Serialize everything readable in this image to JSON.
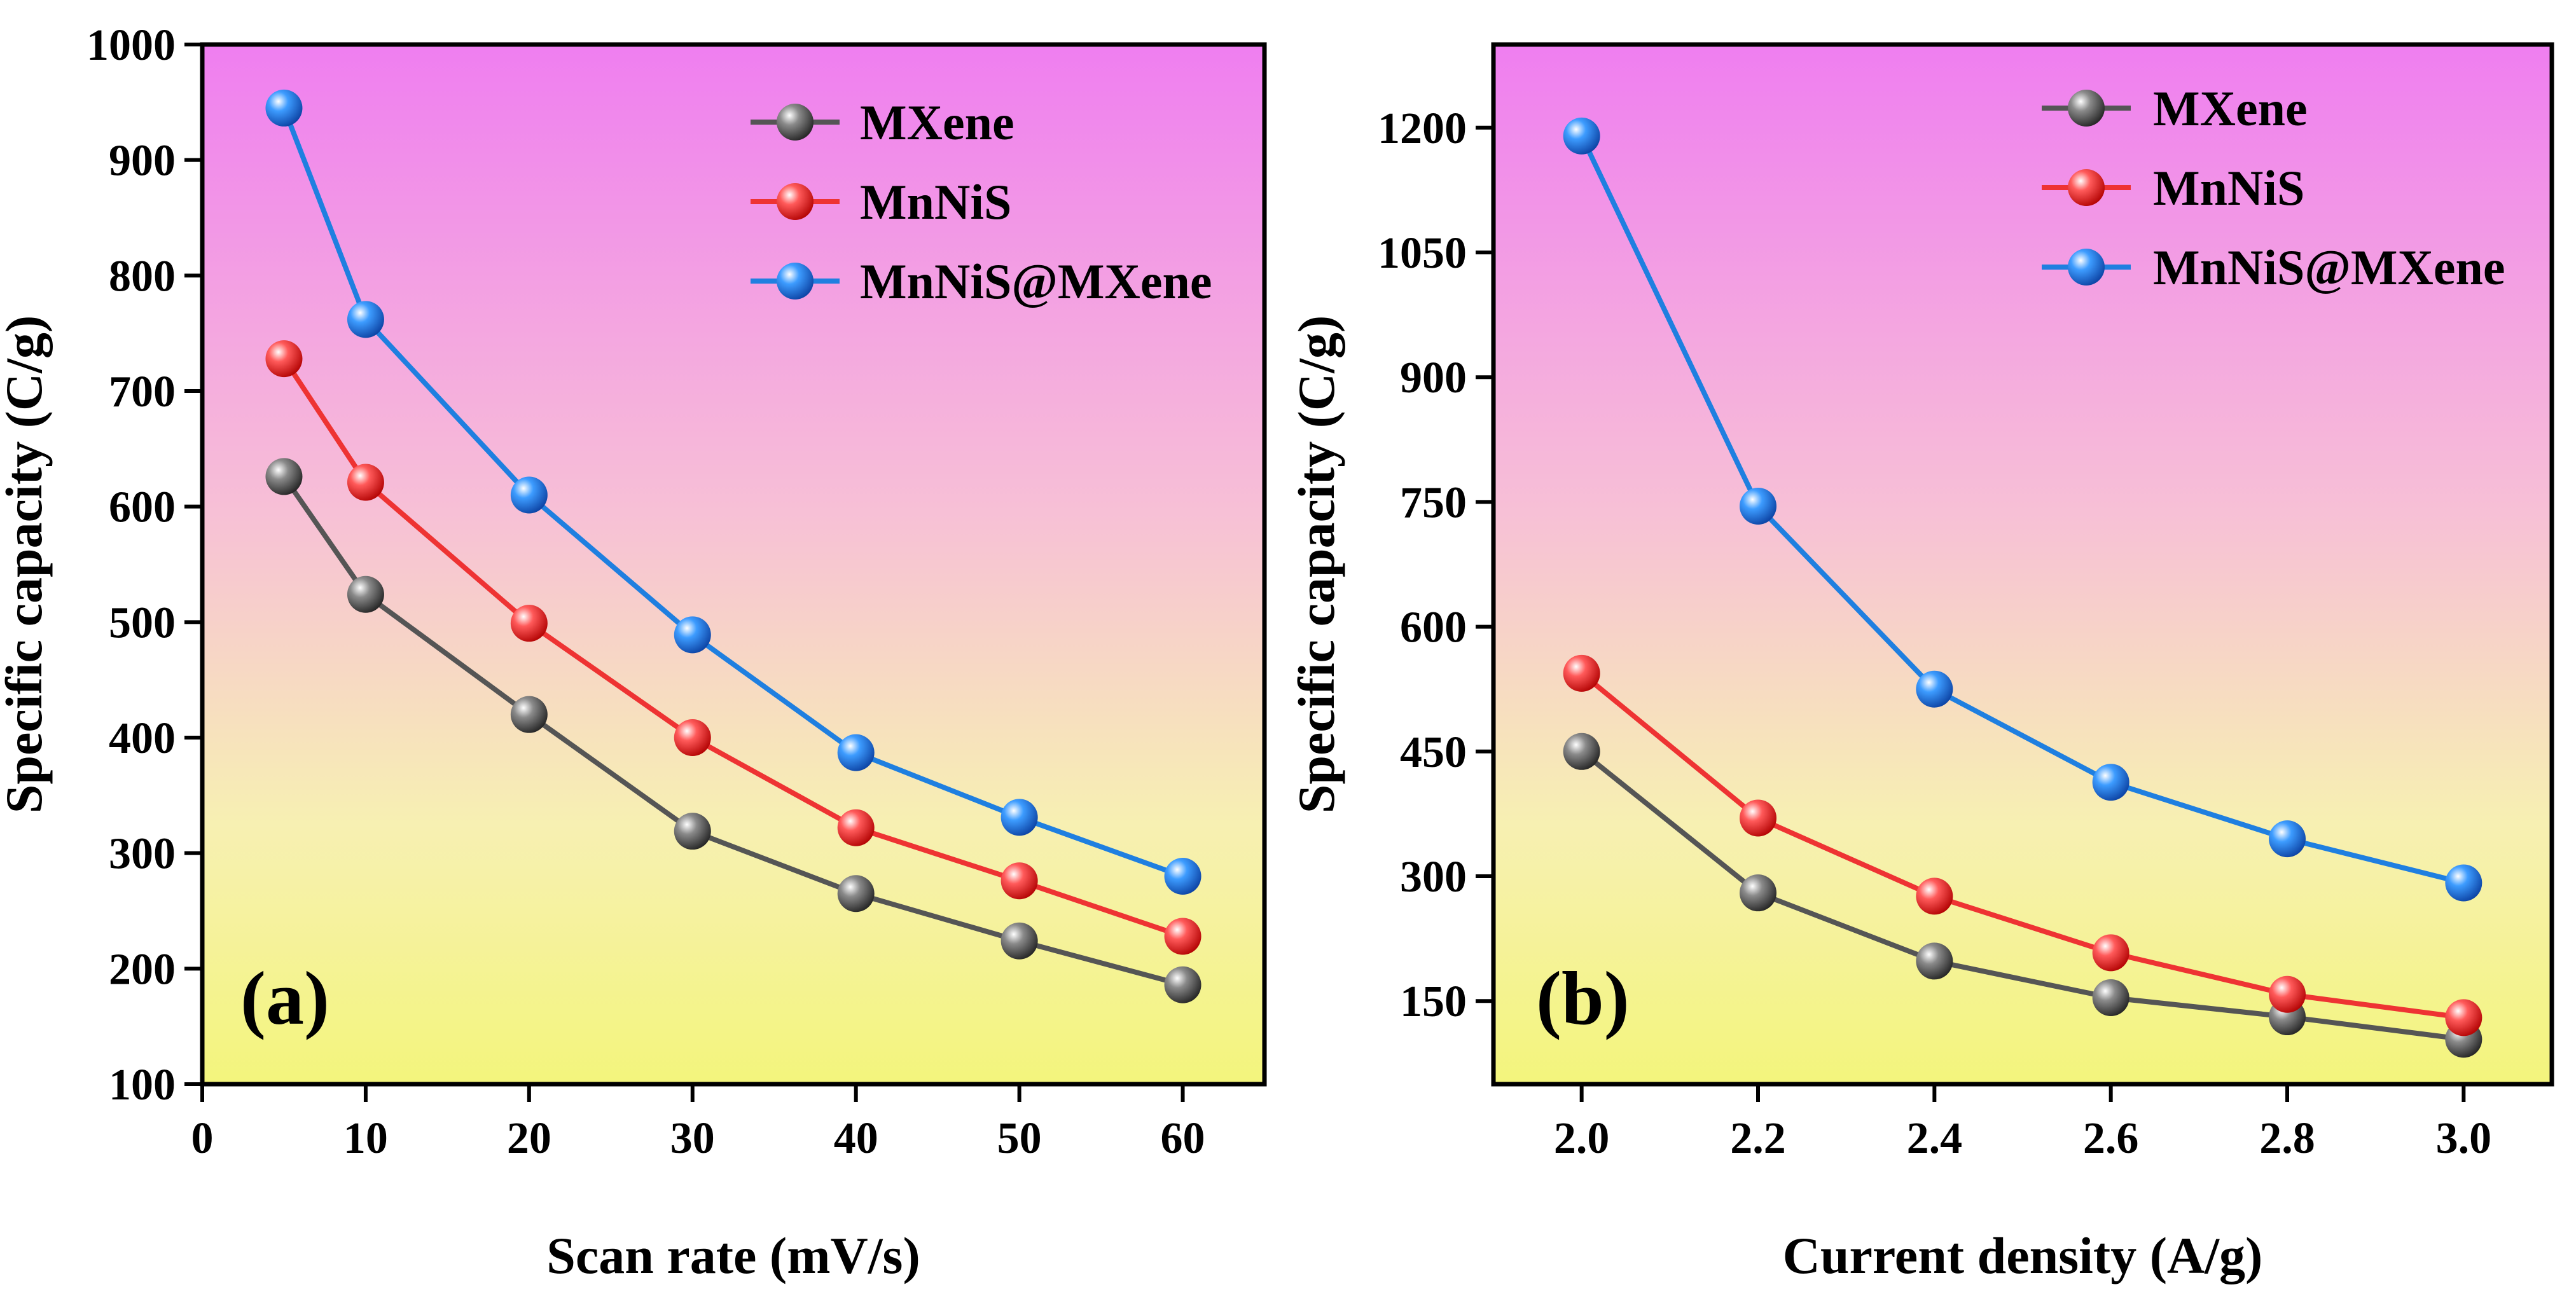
{
  "chart_data": [
    {
      "type": "line",
      "panel_label": "(a)",
      "xlabel": "Scan rate (mV/s)",
      "ylabel": "Specific capacity (C/g)",
      "xlim": [
        0,
        65
      ],
      "ylim": [
        100,
        1000
      ],
      "xticks": [
        0,
        10,
        20,
        30,
        40,
        50,
        60
      ],
      "yticks": [
        100,
        200,
        300,
        400,
        500,
        600,
        700,
        800,
        900,
        1000
      ],
      "x": [
        5,
        10,
        20,
        30,
        40,
        50,
        60
      ],
      "legend_position": "top-right",
      "series": [
        {
          "name": "MXene",
          "color": "#555555",
          "values": [
            626,
            524,
            420,
            319,
            265,
            224,
            186
          ]
        },
        {
          "name": "MnNiS",
          "color": "#ee3333",
          "values": [
            728,
            621,
            499,
            400,
            322,
            276,
            228
          ]
        },
        {
          "name": "MnNiS@MXene",
          "color": "#1f7fe0",
          "values": [
            945,
            762,
            610,
            489,
            387,
            331,
            280
          ]
        }
      ]
    },
    {
      "type": "line",
      "panel_label": "(b)",
      "xlabel": "Current density (A/g)",
      "ylabel": "Specific capacity (C/g)",
      "xlim": [
        1.9,
        3.1
      ],
      "ylim": [
        50,
        1300
      ],
      "xticks": [
        "2.0",
        "2.2",
        "2.4",
        "2.6",
        "2.8",
        "3.0"
      ],
      "yticks": [
        150,
        300,
        450,
        600,
        750,
        900,
        1050,
        1200
      ],
      "x": [
        2.0,
        2.2,
        2.4,
        2.6,
        2.8,
        3.0
      ],
      "legend_position": "top-right",
      "series": [
        {
          "name": "MXene",
          "color": "#555555",
          "values": [
            450,
            280,
            198,
            154,
            131,
            104
          ]
        },
        {
          "name": "MnNiS",
          "color": "#ee3333",
          "values": [
            544,
            370,
            276,
            208,
            158,
            130
          ]
        },
        {
          "name": "MnNiS@MXene",
          "color": "#1f7fe0",
          "values": [
            1190,
            745,
            525,
            413,
            345,
            292
          ]
        }
      ]
    }
  ]
}
